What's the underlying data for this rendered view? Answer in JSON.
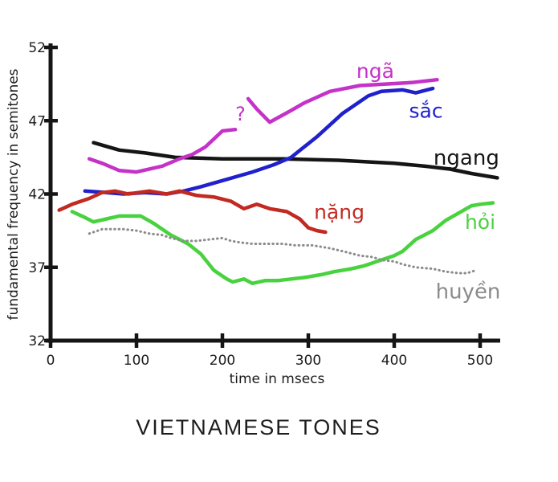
{
  "title": "VIETNAMESE TONES",
  "chart_data": {
    "type": "line",
    "title": "VIETNAMESE TONES",
    "xlabel": "time in msecs",
    "ylabel": "fundamental frequency in semitones",
    "xlim": [
      0,
      520
    ],
    "ylim": [
      32,
      52
    ],
    "xticks": [
      0,
      100,
      200,
      300,
      400,
      500
    ],
    "yticks": [
      32,
      37,
      42,
      47,
      52
    ],
    "grid": false,
    "legend_position": "inline-labels",
    "axis_color": "#151515",
    "annotation": {
      "text": "?",
      "t": 221,
      "s": 47.5,
      "color": "#c432c8",
      "size": 24,
      "meaning": "gap / glottalization in nga contour"
    },
    "series": [
      {
        "name": "ngang",
        "color": "#151515",
        "dotted": false,
        "label": {
          "text": "ngang",
          "t": 484,
          "s": 44.5,
          "size": 26
        },
        "segments": [
          [
            [
              50,
              45.5
            ],
            [
              80,
              45.0
            ],
            [
              110,
              44.8
            ],
            [
              145,
              44.5
            ],
            [
              200,
              44.4
            ],
            [
              270,
              44.4
            ],
            [
              335,
              44.3
            ],
            [
              400,
              44.1
            ],
            [
              435,
              43.9
            ],
            [
              465,
              43.7
            ],
            [
              490,
              43.4
            ],
            [
              520,
              43.1
            ]
          ]
        ]
      },
      {
        "name": "nga",
        "color": "#c432c8",
        "dotted": false,
        "label": {
          "text": "ngã",
          "t": 378,
          "s": 50.4,
          "size": 25
        },
        "segments": [
          [
            [
              45,
              44.4
            ],
            [
              60,
              44.1
            ],
            [
              80,
              43.6
            ],
            [
              100,
              43.5
            ],
            [
              130,
              43.9
            ],
            [
              150,
              44.4
            ],
            [
              165,
              44.7
            ],
            [
              180,
              45.2
            ],
            [
              200,
              46.3
            ],
            [
              215,
              46.4
            ]
          ],
          [
            [
              230,
              48.5
            ],
            [
              240,
              47.8
            ],
            [
              255,
              46.9
            ],
            [
              280,
              47.7
            ],
            [
              295,
              48.2
            ],
            [
              325,
              49.0
            ],
            [
              360,
              49.4
            ],
            [
              390,
              49.5
            ],
            [
              420,
              49.6
            ],
            [
              450,
              49.8
            ]
          ]
        ]
      },
      {
        "name": "sac",
        "color": "#2020cc",
        "dotted": false,
        "label": {
          "text": "sắc",
          "t": 437,
          "s": 47.7,
          "size": 25
        },
        "segments": [
          [
            [
              40,
              42.2
            ],
            [
              65,
              42.1
            ],
            [
              85,
              42.0
            ],
            [
              110,
              42.1
            ],
            [
              135,
              42.0
            ],
            [
              155,
              42.2
            ],
            [
              175,
              42.5
            ],
            [
              205,
              43.0
            ],
            [
              235,
              43.5
            ],
            [
              260,
              44.0
            ],
            [
              280,
              44.5
            ],
            [
              310,
              45.9
            ],
            [
              340,
              47.5
            ],
            [
              370,
              48.7
            ],
            [
              385,
              49.0
            ],
            [
              410,
              49.1
            ],
            [
              425,
              48.9
            ],
            [
              445,
              49.2
            ]
          ]
        ]
      },
      {
        "name": "nang",
        "color": "#c22a21",
        "dotted": false,
        "label": {
          "text": "nặng",
          "t": 336,
          "s": 40.8,
          "size": 25
        },
        "segments": [
          [
            [
              10,
              40.9
            ],
            [
              25,
              41.3
            ],
            [
              45,
              41.7
            ],
            [
              60,
              42.1
            ],
            [
              75,
              42.2
            ],
            [
              90,
              42.0
            ],
            [
              115,
              42.2
            ],
            [
              135,
              42.0
            ],
            [
              150,
              42.2
            ],
            [
              170,
              41.9
            ],
            [
              190,
              41.8
            ],
            [
              210,
              41.5
            ],
            [
              225,
              41.0
            ],
            [
              240,
              41.3
            ],
            [
              255,
              41.0
            ],
            [
              275,
              40.8
            ],
            [
              290,
              40.3
            ],
            [
              300,
              39.7
            ],
            [
              310,
              39.5
            ],
            [
              320,
              39.4
            ]
          ]
        ]
      },
      {
        "name": "hoi",
        "color": "#49d23f",
        "dotted": false,
        "label": {
          "text": "hỏi",
          "t": 500,
          "s": 40.1,
          "size": 25
        },
        "segments": [
          [
            [
              25,
              40.8
            ],
            [
              40,
              40.4
            ],
            [
              50,
              40.1
            ],
            [
              65,
              40.3
            ],
            [
              80,
              40.5
            ],
            [
              105,
              40.5
            ],
            [
              120,
              40.0
            ],
            [
              140,
              39.2
            ],
            [
              160,
              38.6
            ],
            [
              175,
              37.9
            ],
            [
              190,
              36.8
            ],
            [
              205,
              36.2
            ],
            [
              212,
              36.0
            ],
            [
              225,
              36.2
            ],
            [
              235,
              35.9
            ],
            [
              250,
              36.1
            ],
            [
              265,
              36.1
            ],
            [
              280,
              36.2
            ],
            [
              295,
              36.3
            ],
            [
              315,
              36.5
            ],
            [
              330,
              36.7
            ],
            [
              350,
              36.9
            ],
            [
              365,
              37.1
            ],
            [
              385,
              37.5
            ],
            [
              400,
              37.8
            ],
            [
              410,
              38.1
            ],
            [
              425,
              38.9
            ],
            [
              445,
              39.5
            ],
            [
              460,
              40.2
            ],
            [
              475,
              40.7
            ],
            [
              490,
              41.2
            ],
            [
              500,
              41.3
            ],
            [
              515,
              41.4
            ]
          ]
        ]
      },
      {
        "name": "huyen",
        "color": "#8b8b8b",
        "dotted": true,
        "label": {
          "text": "huyền",
          "t": 486,
          "s": 35.4,
          "size": 26
        },
        "segments": [
          [
            [
              45,
              39.3
            ],
            [
              60,
              39.6
            ],
            [
              75,
              39.6
            ],
            [
              85,
              39.6
            ],
            [
              100,
              39.5
            ],
            [
              115,
              39.3
            ],
            [
              130,
              39.2
            ],
            [
              140,
              39.0
            ],
            [
              155,
              38.8
            ],
            [
              170,
              38.8
            ],
            [
              185,
              38.9
            ],
            [
              200,
              39.0
            ],
            [
              210,
              38.8
            ],
            [
              220,
              38.7
            ],
            [
              235,
              38.6
            ],
            [
              250,
              38.6
            ],
            [
              270,
              38.6
            ],
            [
              285,
              38.5
            ],
            [
              305,
              38.5
            ],
            [
              325,
              38.3
            ],
            [
              340,
              38.1
            ],
            [
              360,
              37.8
            ],
            [
              375,
              37.7
            ],
            [
              385,
              37.5
            ],
            [
              400,
              37.4
            ],
            [
              410,
              37.2
            ],
            [
              425,
              37.0
            ],
            [
              445,
              36.9
            ],
            [
              460,
              36.7
            ],
            [
              475,
              36.6
            ],
            [
              485,
              36.6
            ],
            [
              495,
              36.8
            ]
          ]
        ]
      }
    ]
  }
}
